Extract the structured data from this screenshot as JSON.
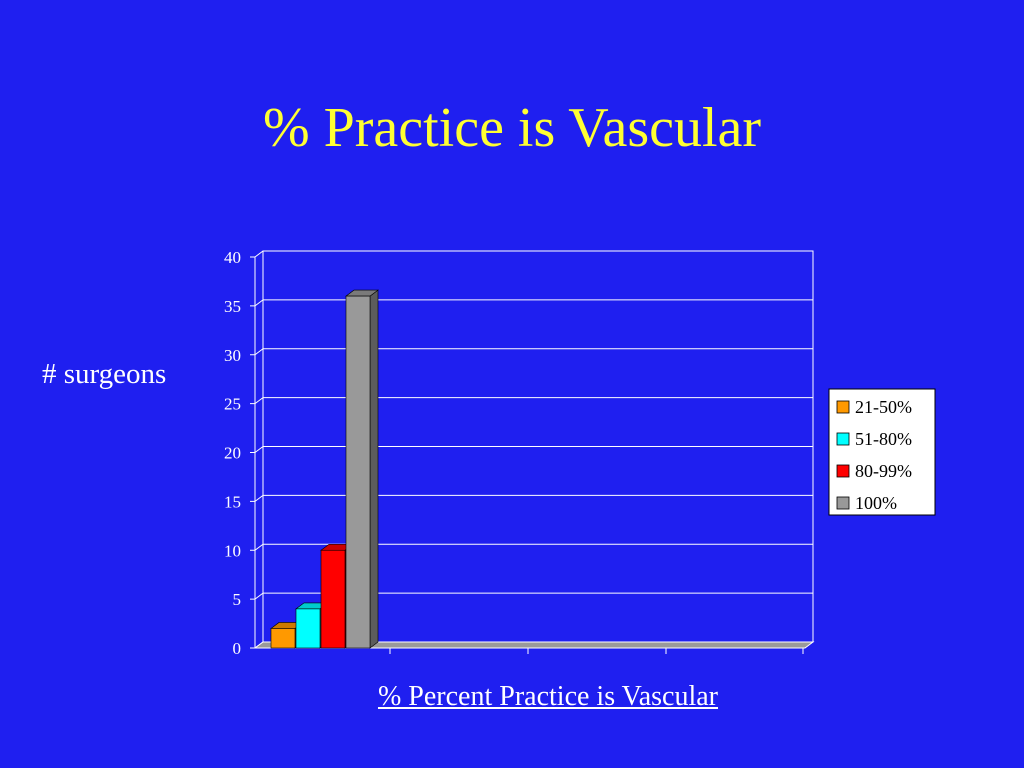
{
  "slide": {
    "title": "% Practice is Vascular",
    "ylabel": "# surgeons",
    "caption": "% Percent Practice is Vascular"
  },
  "chart_data": {
    "type": "bar",
    "categories": [
      ""
    ],
    "series": [
      {
        "name": "21-50%",
        "values": [
          2
        ],
        "color": "#ff9900"
      },
      {
        "name": "51-80%",
        "values": [
          4
        ],
        "color": "#00ffff"
      },
      {
        "name": "80-99%",
        "values": [
          10
        ],
        "color": "#ff0000"
      },
      {
        "name": "100%",
        "values": [
          36
        ],
        "color": "#999999"
      }
    ],
    "ylim": [
      0,
      40
    ],
    "yticks": [
      0,
      5,
      10,
      15,
      20,
      25,
      30,
      35,
      40
    ],
    "grid": true,
    "legend": "right",
    "three_d": true
  }
}
